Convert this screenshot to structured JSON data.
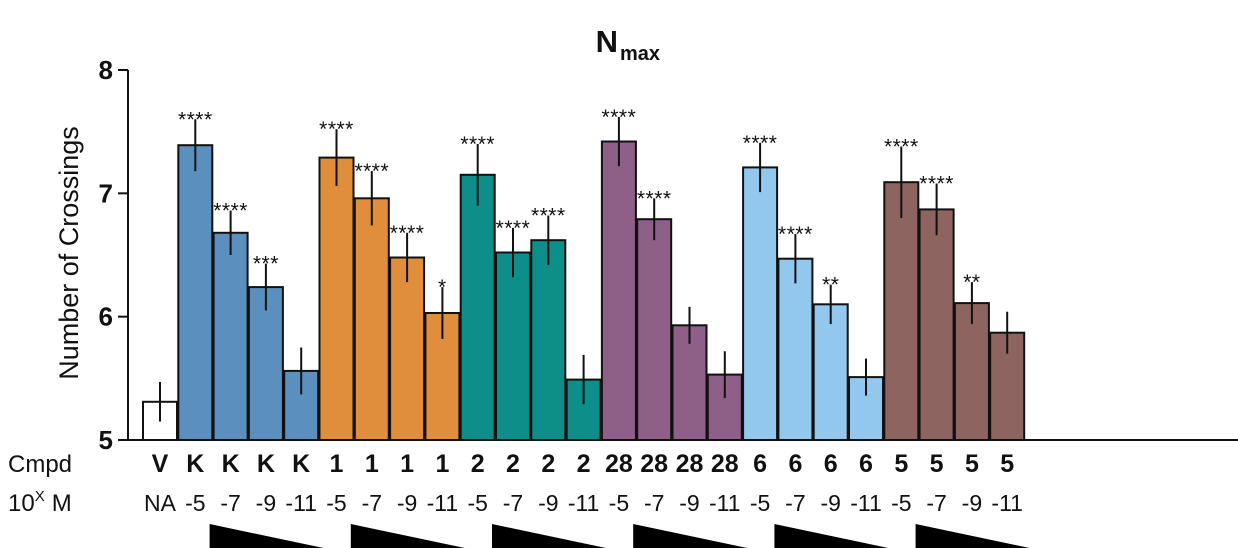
{
  "chart_data": {
    "type": "bar",
    "title": "N",
    "title_subscript": "max",
    "ylabel": "Number of Crossings",
    "ylim": [
      5,
      8
    ],
    "yticks": [
      "5",
      "6",
      "7",
      "8"
    ],
    "grid": false,
    "row_labels": {
      "cmpd": "Cmpd",
      "conc": "10",
      "conc_sup": "X",
      "conc_unit": "M"
    },
    "groups": [
      {
        "compound": "V",
        "color": "#ffffff",
        "bars": [
          {
            "cmpd": "V",
            "conc": "NA",
            "value": 5.31,
            "error": 0.16,
            "sig": ""
          }
        ]
      },
      {
        "compound": "K",
        "color": "#5b8fbd",
        "gradient": true,
        "bars": [
          {
            "cmpd": "K",
            "conc": "-5",
            "value": 7.39,
            "error": 0.21,
            "sig": "****"
          },
          {
            "cmpd": "K",
            "conc": "-7",
            "value": 6.68,
            "error": 0.18,
            "sig": "****"
          },
          {
            "cmpd": "K",
            "conc": "-9",
            "value": 6.24,
            "error": 0.19,
            "sig": "***"
          },
          {
            "cmpd": "K",
            "conc": "-11",
            "value": 5.56,
            "error": 0.19,
            "sig": ""
          }
        ]
      },
      {
        "compound": "1",
        "color": "#e08e3c",
        "gradient": true,
        "bars": [
          {
            "cmpd": "1",
            "conc": "-5",
            "value": 7.29,
            "error": 0.23,
            "sig": "****"
          },
          {
            "cmpd": "1",
            "conc": "-7",
            "value": 6.96,
            "error": 0.22,
            "sig": "****"
          },
          {
            "cmpd": "1",
            "conc": "-9",
            "value": 6.48,
            "error": 0.2,
            "sig": "****"
          },
          {
            "cmpd": "1",
            "conc": "-11",
            "value": 6.03,
            "error": 0.21,
            "sig": "*"
          }
        ]
      },
      {
        "compound": "2",
        "color": "#0e8e89",
        "gradient": true,
        "bars": [
          {
            "cmpd": "2",
            "conc": "-5",
            "value": 7.15,
            "error": 0.25,
            "sig": "****"
          },
          {
            "cmpd": "2",
            "conc": "-7",
            "value": 6.52,
            "error": 0.2,
            "sig": "****"
          },
          {
            "cmpd": "2",
            "conc": "-9",
            "value": 6.62,
            "error": 0.2,
            "sig": "****"
          },
          {
            "cmpd": "2",
            "conc": "-11",
            "value": 5.49,
            "error": 0.2,
            "sig": ""
          }
        ]
      },
      {
        "compound": "28",
        "color": "#8e6088",
        "gradient": true,
        "bars": [
          {
            "cmpd": "28",
            "conc": "-5",
            "value": 7.42,
            "error": 0.2,
            "sig": "****"
          },
          {
            "cmpd": "28",
            "conc": "-7",
            "value": 6.79,
            "error": 0.17,
            "sig": "****"
          },
          {
            "cmpd": "28",
            "conc": "-9",
            "value": 5.93,
            "error": 0.15,
            "sig": ""
          },
          {
            "cmpd": "28",
            "conc": "-11",
            "value": 5.53,
            "error": 0.19,
            "sig": ""
          }
        ]
      },
      {
        "compound": "6",
        "color": "#92c8ee",
        "gradient": true,
        "bars": [
          {
            "cmpd": "6",
            "conc": "-5",
            "value": 7.21,
            "error": 0.2,
            "sig": "****"
          },
          {
            "cmpd": "6",
            "conc": "-7",
            "value": 6.47,
            "error": 0.2,
            "sig": "****"
          },
          {
            "cmpd": "6",
            "conc": "-9",
            "value": 6.1,
            "error": 0.16,
            "sig": "**"
          },
          {
            "cmpd": "6",
            "conc": "-11",
            "value": 5.51,
            "error": 0.15,
            "sig": ""
          }
        ]
      },
      {
        "compound": "5",
        "color": "#8e6460",
        "gradient": true,
        "bars": [
          {
            "cmpd": "5",
            "conc": "-5",
            "value": 7.09,
            "error": 0.29,
            "sig": "****"
          },
          {
            "cmpd": "5",
            "conc": "-7",
            "value": 6.87,
            "error": 0.21,
            "sig": "****"
          },
          {
            "cmpd": "5",
            "conc": "-9",
            "value": 6.11,
            "error": 0.17,
            "sig": "**"
          },
          {
            "cmpd": "5",
            "conc": "-11",
            "value": 5.87,
            "error": 0.17,
            "sig": ""
          }
        ]
      }
    ]
  }
}
